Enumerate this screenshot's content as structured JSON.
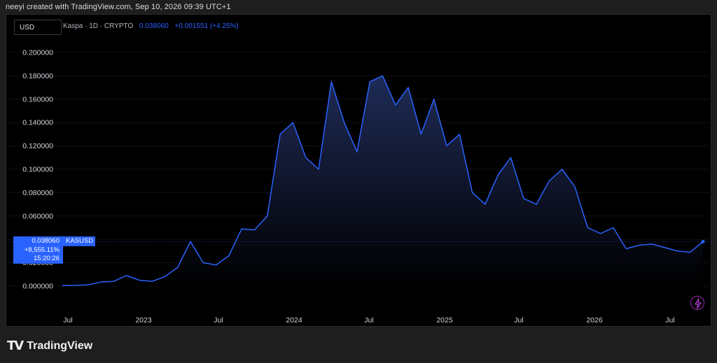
{
  "header": {
    "created_by": "neeyi created with TradingView.com, Sep 10, 2026 09:39 UTC+1"
  },
  "toolbar": {
    "currency": "USD"
  },
  "legend": {
    "symbol": "Kaspa · 1D · CRYPTO",
    "price": "0.038060",
    "change": "+0.001551 (+4.25%)"
  },
  "price_tag": {
    "price": "0.038060",
    "pct": "+8,555.11%",
    "countdown": "15:20:26",
    "ticker": "KASUSD"
  },
  "footer": {
    "brand": "TradingView",
    "logo_text": "TV"
  },
  "colors": {
    "line": "#2962ff",
    "background": "#000000",
    "fill_top": "#1f2b57",
    "fill_bottom": "#000000"
  },
  "chart_data": {
    "type": "area",
    "y_ticks": [
      "0.000000",
      "0.020000",
      "0.040000",
      "0.060000",
      "0.080000",
      "0.100000",
      "0.120000",
      "0.140000",
      "0.160000",
      "0.180000",
      "0.200000"
    ],
    "x_ticks": [
      "Jul",
      "2023",
      "Jul",
      "2024",
      "Jul",
      "2025",
      "Jul",
      "2026",
      "Jul"
    ],
    "ylim": [
      0,
      0.205
    ],
    "x": [
      "2022-07",
      "2022-08",
      "2022-09",
      "2022-10",
      "2022-11",
      "2022-12",
      "2023-01",
      "2023-02",
      "2023-03",
      "2023-04",
      "2023-05",
      "2023-06",
      "2023-07",
      "2023-08",
      "2023-09",
      "2023-10",
      "2023-11",
      "2023-12",
      "2024-01",
      "2024-02",
      "2024-03",
      "2024-04",
      "2024-05",
      "2024-06",
      "2024-07",
      "2024-08",
      "2024-09",
      "2024-10",
      "2024-11",
      "2024-12",
      "2025-01",
      "2025-02",
      "2025-03",
      "2025-04",
      "2025-05",
      "2025-06",
      "2025-07",
      "2025-08",
      "2025-09",
      "2025-10",
      "2025-11",
      "2025-12",
      "2026-01",
      "2026-02",
      "2026-03",
      "2026-04",
      "2026-05",
      "2026-06",
      "2026-07",
      "2026-08",
      "2026-09"
    ],
    "values": [
      0.0005,
      0.0006,
      0.001,
      0.0035,
      0.004,
      0.009,
      0.005,
      0.004,
      0.008,
      0.016,
      0.038,
      0.02,
      0.018,
      0.026,
      0.049,
      0.048,
      0.06,
      0.13,
      0.14,
      0.11,
      0.1,
      0.175,
      0.14,
      0.115,
      0.175,
      0.18,
      0.155,
      0.17,
      0.13,
      0.16,
      0.12,
      0.13,
      0.08,
      0.07,
      0.095,
      0.11,
      0.075,
      0.07,
      0.09,
      0.1,
      0.085,
      0.05,
      0.045,
      0.05,
      0.032,
      0.035,
      0.036,
      0.033,
      0.03,
      0.029,
      0.038
    ]
  }
}
